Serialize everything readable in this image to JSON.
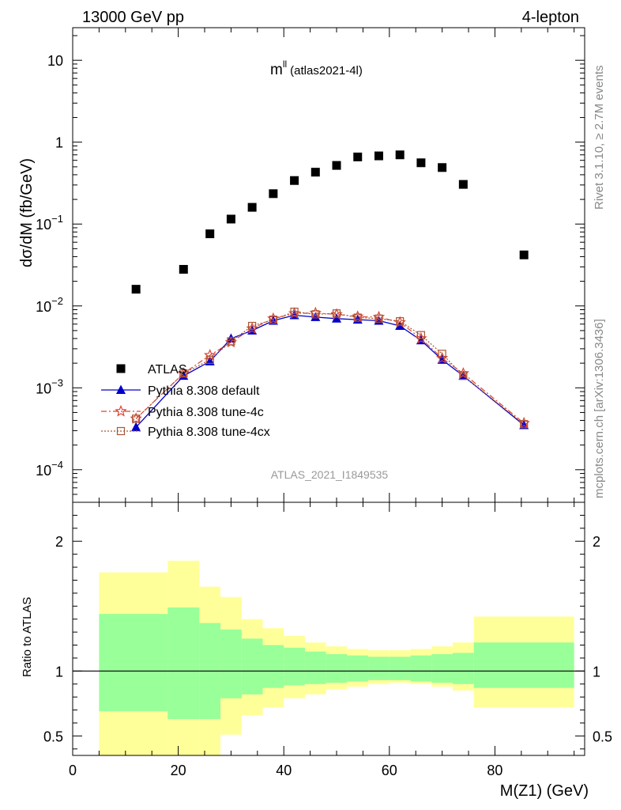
{
  "header": {
    "left": "13000 GeV pp",
    "right": "4-lepton"
  },
  "side_labels": {
    "rivet": "Rivet 3.1.10, ≥ 2.7M events",
    "mcplots": "mcplots.cern.ch [arXiv:1306.3436]"
  },
  "chart_data": {
    "type": "scatter",
    "title_main": "m",
    "title_sup": "ll",
    "title_tag": "(atlas2021-4l)",
    "analysis_id": "ATLAS_2021_I1849535",
    "xlabel": "M(Z1) (GeV)",
    "ylabel": "dσ/dM (fb/GeV)",
    "ratio_ylabel": "Ratio to ATLAS",
    "xlim": [
      0,
      97
    ],
    "ylim": [
      4e-05,
      25
    ],
    "yscale": "log",
    "ratio_ylim": [
      0.35,
      2.3
    ],
    "x_ticks": [
      0,
      20,
      40,
      60,
      80
    ],
    "x_tick_labels": [
      "0",
      "20",
      "40",
      "60",
      "80"
    ],
    "y_ticks": [
      {
        "base": "10",
        "exp": "",
        "value": 10
      },
      {
        "base": "1",
        "exp": "",
        "value": 1
      },
      {
        "base": "10",
        "exp": "−1",
        "value": 0.1
      },
      {
        "base": "10",
        "exp": "−2",
        "value": 0.01
      },
      {
        "base": "10",
        "exp": "−3",
        "value": 0.001
      },
      {
        "base": "10",
        "exp": "−4",
        "value": 0.0001
      }
    ],
    "ratio_ticks": [
      "0.5",
      "1",
      "2"
    ],
    "ratio_tick_values": [
      0.5,
      1,
      2
    ],
    "legend": [
      {
        "label": "ATLAS",
        "marker": "square",
        "color": "#000000"
      },
      {
        "label": "Pythia 8.308 default",
        "marker": "triangle",
        "color": "#0000cc"
      },
      {
        "label": "Pythia 8.308 tune-4c",
        "marker": "star",
        "color": "#dd4433"
      },
      {
        "label": "Pythia 8.308 tune-4cx",
        "marker": "open-square",
        "color": "#aa5533"
      }
    ],
    "legend_position": "lower-left",
    "series": [
      {
        "name": "ATLAS",
        "x": [
          12,
          21,
          26,
          30,
          34,
          38,
          42,
          46,
          50,
          54,
          58,
          62,
          66,
          70,
          74,
          85.5
        ],
        "y": [
          0.016,
          0.028,
          0.076,
          0.115,
          0.16,
          0.235,
          0.34,
          0.43,
          0.52,
          0.66,
          0.68,
          0.7,
          0.56,
          0.49,
          0.305,
          0.042
        ]
      },
      {
        "name": "Pythia 8.308 default",
        "x": [
          12,
          21,
          26,
          30,
          34,
          38,
          42,
          46,
          50,
          54,
          58,
          62,
          66,
          70,
          74,
          85.5
        ],
        "y": [
          0.00033,
          0.0014,
          0.0021,
          0.004,
          0.005,
          0.0066,
          0.0077,
          0.0073,
          0.007,
          0.0068,
          0.0066,
          0.0057,
          0.0038,
          0.0022,
          0.0014,
          0.00035
        ]
      },
      {
        "name": "Pythia 8.308 tune-4c",
        "x": [
          12,
          21,
          26,
          30,
          34,
          38,
          42,
          46,
          50,
          54,
          58,
          62,
          66,
          70,
          74,
          85.5
        ],
        "y": [
          0.00042,
          0.0015,
          0.0025,
          0.0036,
          0.0053,
          0.007,
          0.0081,
          0.0082,
          0.0079,
          0.0074,
          0.0073,
          0.0063,
          0.004,
          0.0023,
          0.0015,
          0.00037
        ]
      },
      {
        "name": "Pythia 8.308 tune-4cx",
        "x": [
          12,
          21,
          26,
          30,
          34,
          38,
          42,
          46,
          50,
          54,
          58,
          62,
          66,
          70,
          74,
          85.5
        ],
        "y": [
          0.00042,
          0.0015,
          0.0022,
          0.0037,
          0.0057,
          0.0068,
          0.0085,
          0.0079,
          0.0081,
          0.0072,
          0.007,
          0.0065,
          0.0044,
          0.0026,
          0.0014,
          0.00036
        ]
      }
    ],
    "ratio_bands": {
      "bins": [
        [
          5,
          18
        ],
        [
          18,
          24
        ],
        [
          24,
          28
        ],
        [
          28,
          32
        ],
        [
          32,
          36
        ],
        [
          36,
          40
        ],
        [
          40,
          44
        ],
        [
          44,
          48
        ],
        [
          48,
          52
        ],
        [
          52,
          56
        ],
        [
          56,
          60
        ],
        [
          60,
          64
        ],
        [
          64,
          68
        ],
        [
          68,
          72
        ],
        [
          72,
          76
        ],
        [
          76,
          95
        ]
      ],
      "yellow_low": [
        0.35,
        0.35,
        0.35,
        0.51,
        0.66,
        0.72,
        0.79,
        0.82,
        0.86,
        0.88,
        0.9,
        0.91,
        0.9,
        0.88,
        0.85,
        0.72
      ],
      "yellow_high": [
        1.76,
        1.85,
        1.65,
        1.57,
        1.4,
        1.33,
        1.27,
        1.22,
        1.19,
        1.17,
        1.16,
        1.16,
        1.17,
        1.19,
        1.22,
        1.42
      ],
      "green_low": [
        0.69,
        0.63,
        0.63,
        0.79,
        0.82,
        0.87,
        0.89,
        0.9,
        0.91,
        0.92,
        0.93,
        0.93,
        0.92,
        0.91,
        0.9,
        0.87
      ],
      "green_high": [
        1.44,
        1.49,
        1.37,
        1.32,
        1.25,
        1.2,
        1.18,
        1.15,
        1.13,
        1.12,
        1.11,
        1.11,
        1.12,
        1.13,
        1.14,
        1.22
      ]
    },
    "colors": {
      "band_yellow": "#ffff99",
      "band_green": "#99ff99"
    },
    "grid": false
  }
}
